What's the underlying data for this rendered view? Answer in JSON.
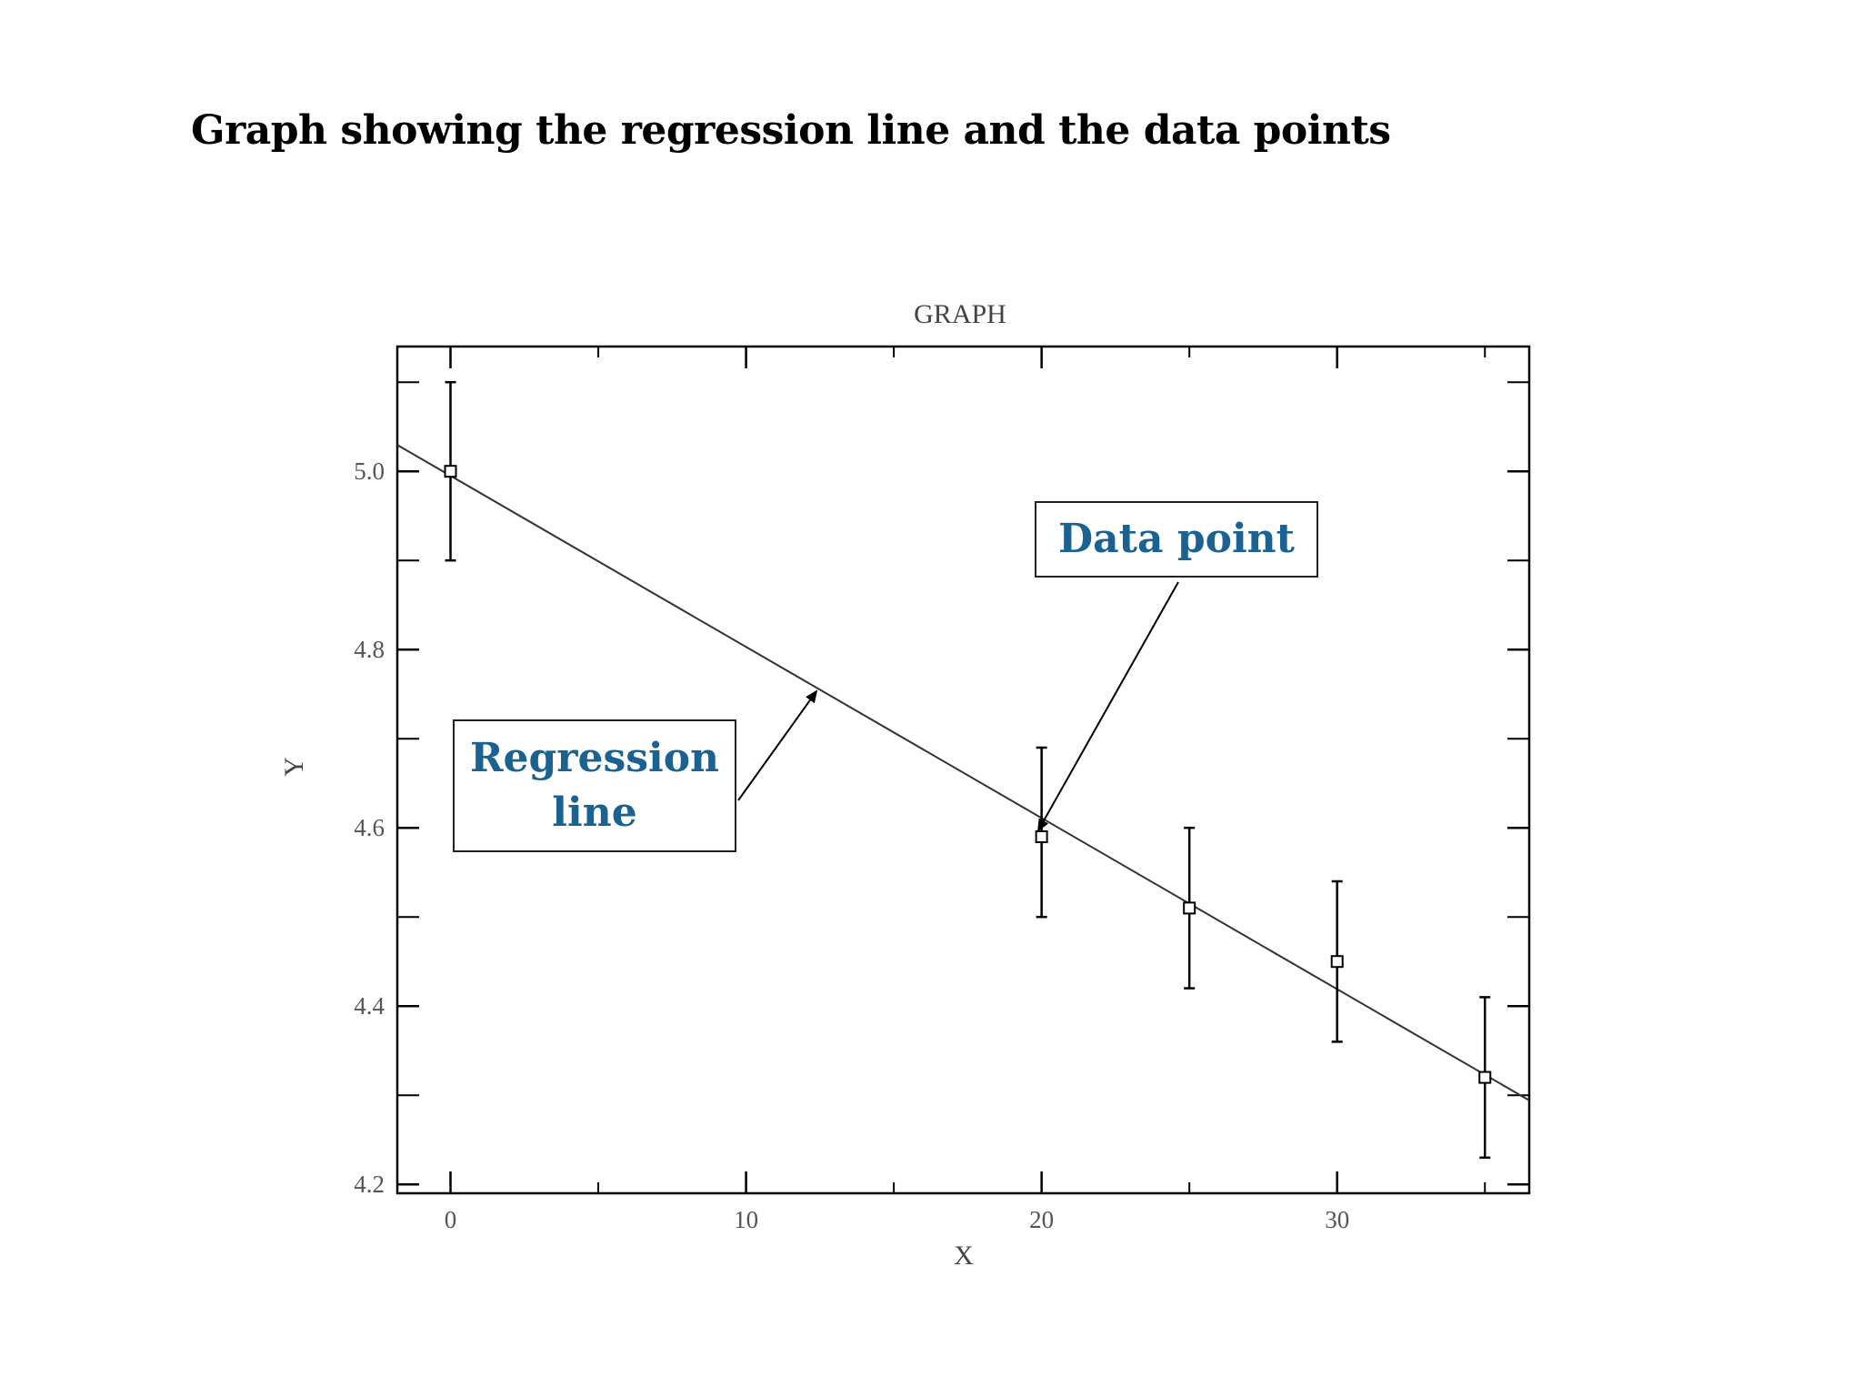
{
  "slide": {
    "title": "Graph showing the regression line and the data points"
  },
  "callouts": {
    "data_point": "Data point",
    "regression_line_1": "Regression",
    "regression_line_2": "line"
  },
  "colors": {
    "callout_text": "#1a6291",
    "axis": "#000000",
    "line": "#333333"
  },
  "chart_data": {
    "type": "scatter",
    "title": "GRAPH",
    "xlabel": "X",
    "ylabel": "Y",
    "xlim": [
      -1.8,
      36.5
    ],
    "ylim": [
      4.19,
      5.14
    ],
    "x_ticks": [
      0,
      10,
      20,
      30
    ],
    "y_ticks": [
      4.2,
      4.4,
      4.6,
      4.8,
      5.0
    ],
    "x_tick_labels": [
      "0",
      "10",
      "20",
      "30"
    ],
    "y_tick_labels": [
      "4.2",
      "4.4",
      "4.6",
      "4.8",
      "5.0"
    ],
    "points": [
      {
        "x": 0,
        "y": 5.0,
        "err_low": 4.9,
        "err_high": 5.1
      },
      {
        "x": 20,
        "y": 4.59,
        "err_low": 4.5,
        "err_high": 4.69
      },
      {
        "x": 25,
        "y": 4.51,
        "err_low": 4.42,
        "err_high": 4.6
      },
      {
        "x": 30,
        "y": 4.45,
        "err_low": 4.36,
        "err_high": 4.54
      },
      {
        "x": 35,
        "y": 4.32,
        "err_low": 4.23,
        "err_high": 4.41
      }
    ],
    "regression_line": {
      "intercept": 4.995,
      "slope": -0.0192
    },
    "grid": false,
    "legend": "none"
  }
}
